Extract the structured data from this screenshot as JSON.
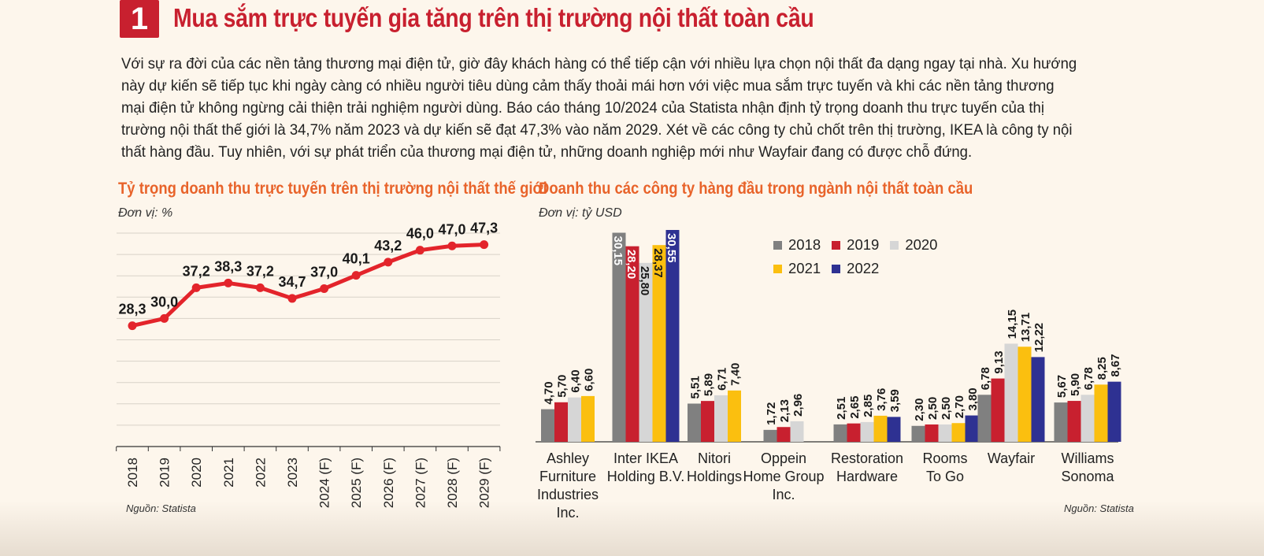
{
  "header": {
    "number": "1",
    "title": "Mua sắm trực tuyến gia tăng trên thị trường nội thất toàn cầu"
  },
  "intro": "Với sự ra đời của các nền tảng thương mại điện tử, giờ đây khách hàng có thể tiếp cận với nhiều lựa chọn nội thất đa dạng ngay tại nhà. Xu hướng này dự kiến sẽ tiếp tục khi ngày càng có nhiều người tiêu dùng cảm thấy thoải mái hơn với việc mua sắm trực tuyến và khi các nền tảng thương mại điện tử không ngừng cải thiện trải nghiệm người dùng. Báo cáo tháng 10/2024 của Statista nhận định tỷ trọng doanh thu trực tuyến của thị trường nội thất thế giới là 34,7% năm 2023 và dự kiến sẽ đạt 47,3% vào năm 2029. Xét về các công ty chủ chốt trên thị trường, IKEA là công ty nội thất hàng đầu. Tuy nhiên, với sự phát triển của thương mại điện tử, những doanh nghiệp mới như Wayfair đang có được chỗ đứng.",
  "colors": {
    "accent": "#c8202f",
    "chart_title": "#e8632a",
    "line": "#e3242b",
    "y2018": "#808080",
    "y2019": "#c8202f",
    "y2020": "#d6d6d6",
    "y2021": "#fbbf0f",
    "y2022": "#2e3192"
  },
  "chart_data": [
    {
      "type": "line",
      "title": "Tỷ trọng doanh thu trực tuyến trên thị trường nội thất thế giới",
      "unit": "Đơn vị: %",
      "source": "Nguồn: Statista",
      "x": [
        "2018",
        "2019",
        "2020",
        "2021",
        "2022",
        "2023",
        "2024 (F)",
        "2025 (F)",
        "2026 (F)",
        "2027 (F)",
        "2028 (F)",
        "2029 (F)"
      ],
      "values": [
        28.3,
        30.0,
        37.2,
        38.3,
        37.2,
        34.7,
        37.0,
        40.1,
        43.2,
        46.0,
        47.0,
        47.3
      ],
      "labels": [
        "28,3",
        "30,0",
        "37,2",
        "38,3",
        "37,2",
        "34,7",
        "37,0",
        "40,1",
        "43,2",
        "46,0",
        "47,0",
        "47,3"
      ],
      "ylim": [
        0,
        50
      ],
      "grid": true
    },
    {
      "type": "bar",
      "title": "Doanh thu các công ty hàng đầu trong ngành nội thất toàn cầu",
      "unit": "Đơn vị: tỷ USD",
      "source": "Nguồn: Statista",
      "legend_position": "top-right",
      "categories": [
        [
          "Ashley",
          "Furniture",
          "Industries",
          "Inc."
        ],
        [
          "Inter IKEA",
          "Holding B.V."
        ],
        [
          "Nitori",
          "Holdings"
        ],
        [
          "Oppein",
          "Home Group",
          "Inc."
        ],
        [
          "Restoration",
          "Hardware"
        ],
        [
          "Rooms",
          "To Go"
        ],
        [
          "Wayfair"
        ],
        [
          "Williams",
          "Sonoma"
        ]
      ],
      "ylim": [
        0,
        30.55
      ],
      "series": [
        {
          "name": "2018",
          "color": "#808080",
          "values": [
            4.7,
            30.15,
            5.51,
            1.72,
            2.51,
            2.3,
            6.78,
            5.67
          ],
          "labels": [
            "4,70",
            "30,15",
            "5,51",
            "1,72",
            "2,51",
            "2,30",
            "6,78",
            "5,67"
          ]
        },
        {
          "name": "2019",
          "color": "#c8202f",
          "values": [
            5.7,
            28.2,
            5.89,
            2.13,
            2.65,
            2.5,
            9.13,
            5.9
          ],
          "labels": [
            "5,70",
            "28,20",
            "5,89",
            "2,13",
            "2,65",
            "2,50",
            "9,13",
            "5,90"
          ]
        },
        {
          "name": "2020",
          "color": "#d6d6d6",
          "values": [
            6.4,
            25.8,
            6.71,
            2.96,
            2.85,
            2.5,
            14.15,
            6.78
          ],
          "labels": [
            "6,40",
            "25,80",
            "6,71",
            "2,96",
            "2,85",
            "2,50",
            "14,15",
            "6,78"
          ]
        },
        {
          "name": "2021",
          "color": "#fbbf0f",
          "values": [
            6.6,
            28.37,
            7.4,
            null,
            3.76,
            2.7,
            13.71,
            8.25
          ],
          "labels": [
            "6,60",
            "28,37",
            "7,40",
            null,
            "3,76",
            "2,70",
            "13,71",
            "8,25"
          ]
        },
        {
          "name": "2022",
          "color": "#2e3192",
          "values": [
            null,
            30.55,
            null,
            null,
            3.59,
            3.8,
            12.22,
            8.67
          ],
          "labels": [
            null,
            "30,55",
            null,
            null,
            "3,59",
            "3,80",
            "12,22",
            "8,67"
          ]
        }
      ]
    }
  ]
}
